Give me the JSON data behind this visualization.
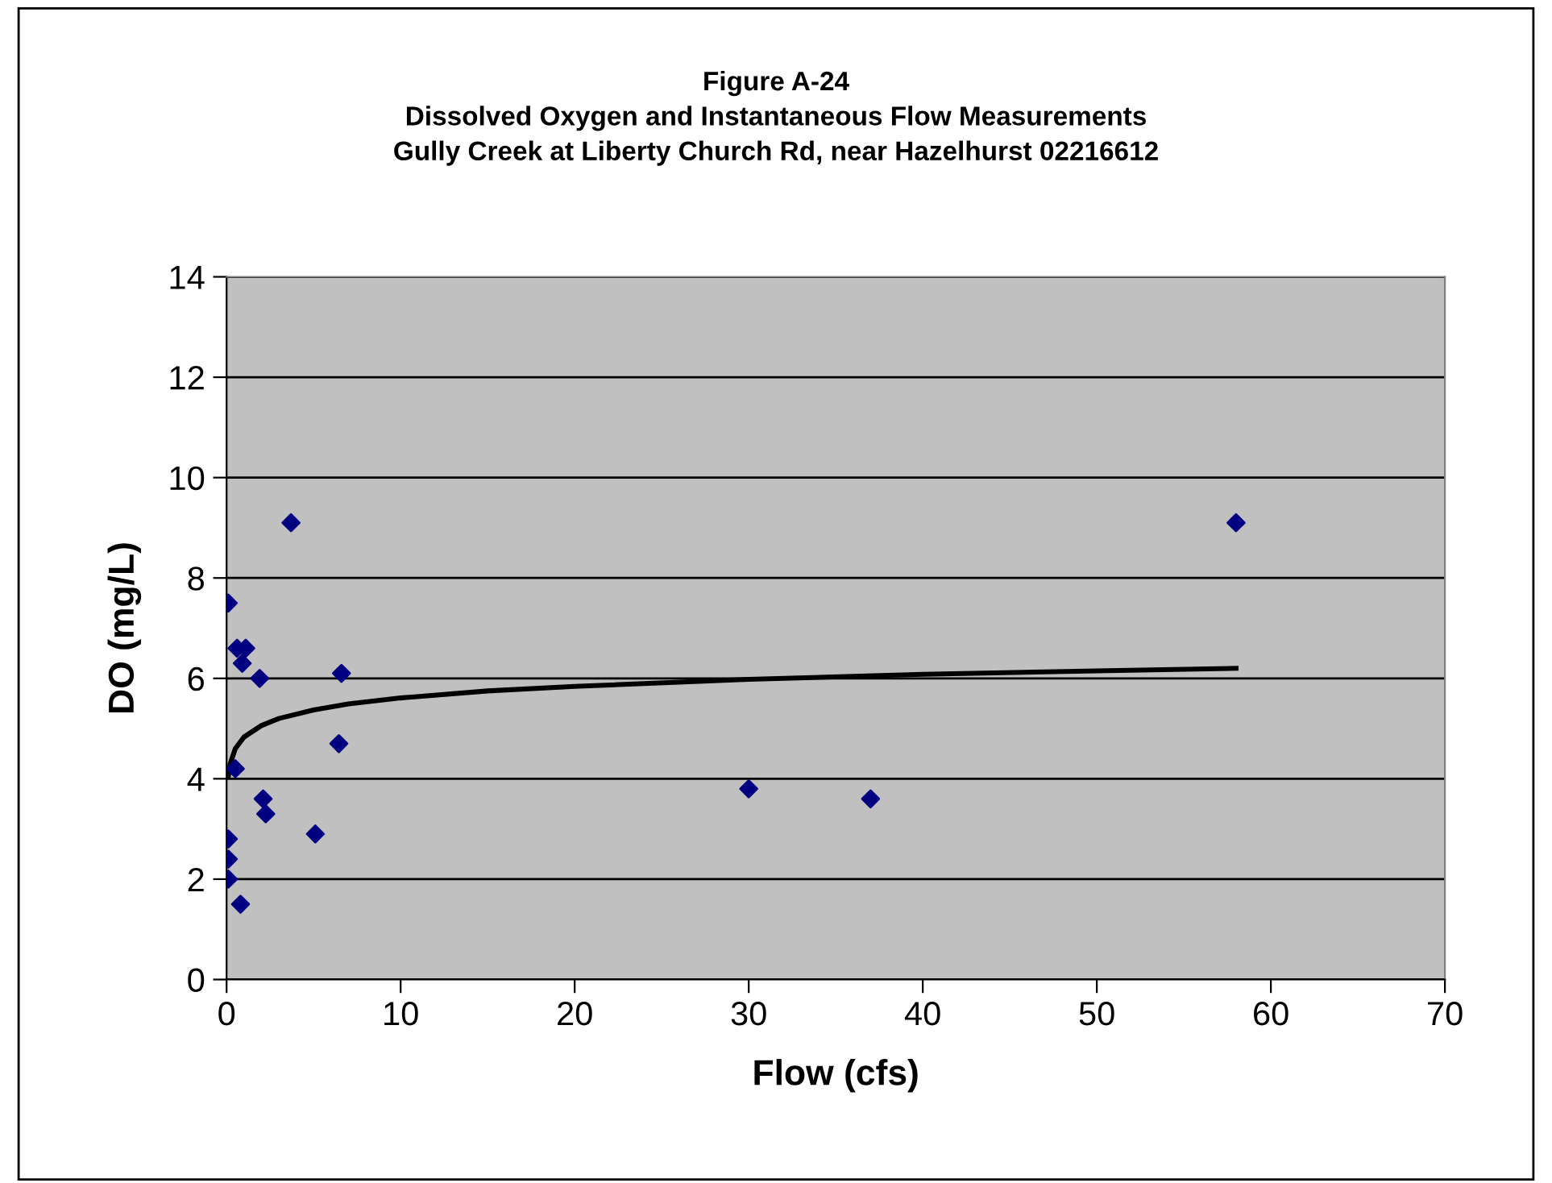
{
  "chart_data": {
    "type": "scatter",
    "title": "Figure A-24\nDissolved Oxygen and Instantaneous Flow Measurements\nGully Creek at Liberty Church Rd, near Hazelhurst 02216612",
    "xlabel": "Flow (cfs)",
    "ylabel": "DO (mg/L)",
    "xlim": [
      0,
      70
    ],
    "xticks": [
      0,
      10,
      20,
      30,
      40,
      50,
      60,
      70
    ],
    "ylim": [
      0,
      14
    ],
    "yticks": [
      0,
      2,
      4,
      6,
      8,
      10,
      12,
      14
    ],
    "grid": "y",
    "legend": false,
    "marker": "diamond",
    "series": [
      {
        "color": "#000080",
        "x": [
          3.7,
          0.1,
          0.6,
          1.1,
          0.9,
          1.9,
          6.6,
          6.45,
          0.5,
          2.1,
          2.25,
          5.1,
          0.1,
          0.1,
          0.1,
          0.8,
          30,
          37,
          58
        ],
        "values": [
          9.1,
          7.5,
          6.6,
          6.6,
          6.3,
          6.0,
          6.1,
          4.7,
          4.2,
          3.6,
          3.3,
          2.9,
          2.8,
          2.4,
          2.0,
          1.5,
          3.8,
          3.6,
          9.1
        ]
      },
      {
        "type": "line",
        "color": "#000000",
        "marker": "none",
        "line_style": "solid",
        "x": [
          0.1,
          0.2,
          0.5,
          1,
          2,
          3,
          5,
          7,
          10,
          15,
          20,
          30,
          40,
          50,
          58
        ],
        "values": [
          4.05,
          4.29,
          4.6,
          4.83,
          5.06,
          5.2,
          5.37,
          5.49,
          5.61,
          5.75,
          5.84,
          5.98,
          6.08,
          6.15,
          6.2
        ]
      }
    ]
  }
}
